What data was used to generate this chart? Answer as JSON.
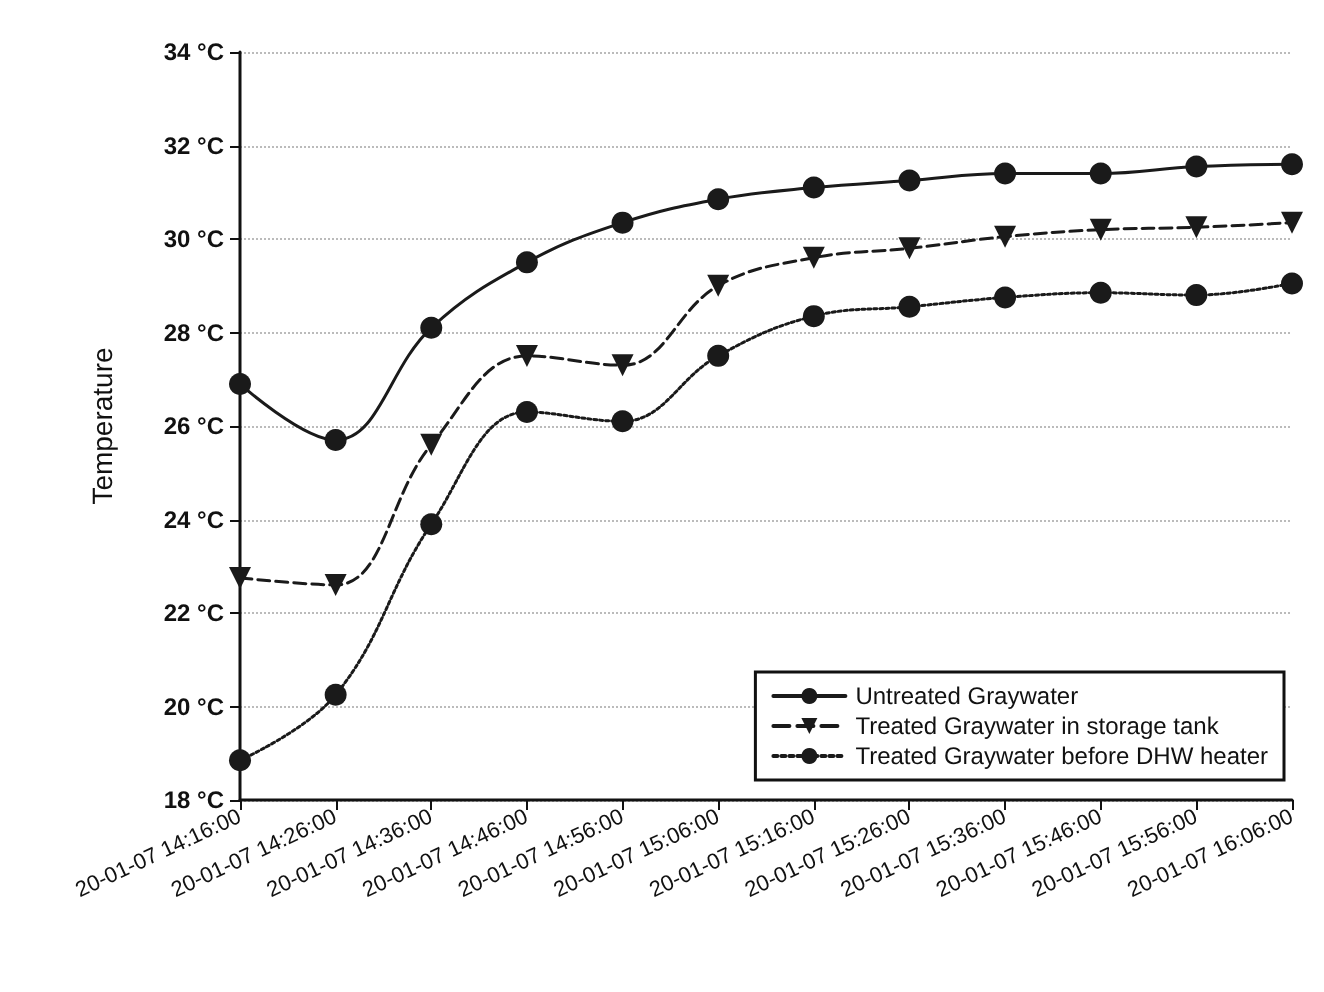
{
  "chart_data": {
    "type": "line",
    "ylabel": "Temperature",
    "categories": [
      "20-01-07 14:16:00",
      "20-01-07 14:26:00",
      "20-01-07 14:36:00",
      "20-01-07 14:46:00",
      "20-01-07 14:56:00",
      "20-01-07 15:06:00",
      "20-01-07 15:16:00",
      "20-01-07 15:26:00",
      "20-01-07 15:36:00",
      "20-01-07 15:46:00",
      "20-01-07 15:56:00",
      "20-01-07 16:06:00"
    ],
    "series": [
      {
        "name": "Untreated Graywater",
        "color": "#1a1a1a",
        "marker": "circle",
        "line_style": "solid",
        "values": [
          26.9,
          25.7,
          28.1,
          29.5,
          30.35,
          30.85,
          31.1,
          31.25,
          31.4,
          31.4,
          31.55,
          31.6
        ]
      },
      {
        "name": "Treated Graywater in storage tank",
        "color": "#1a1a1a",
        "marker": "triangle",
        "line_style": "dashed",
        "values": [
          22.75,
          22.6,
          25.6,
          27.5,
          27.3,
          29.0,
          29.6,
          29.8,
          30.05,
          30.2,
          30.25,
          30.35
        ]
      },
      {
        "name": "Treated Graywater before DHW heater",
        "color": "#1a1a1a",
        "marker": "circle",
        "line_style": "dotted",
        "values": [
          18.85,
          20.25,
          23.9,
          26.3,
          26.1,
          27.5,
          28.35,
          28.55,
          28.75,
          28.85,
          28.8,
          29.05
        ]
      }
    ],
    "ylim": [
      18,
      34
    ],
    "yticks": [
      {
        "value": 18,
        "label": "18 °C"
      },
      {
        "value": 20,
        "label": "20 °C"
      },
      {
        "value": 22,
        "label": "22 °C"
      },
      {
        "value": 24,
        "label": "24 °C"
      },
      {
        "value": 26,
        "label": "26 °C"
      },
      {
        "value": 28,
        "label": "28 °C"
      },
      {
        "value": 30,
        "label": "30 °C"
      },
      {
        "value": 32,
        "label": "32 °C"
      },
      {
        "value": 34,
        "label": "34 °C"
      }
    ],
    "grid": "y",
    "legend": "bottom right"
  }
}
